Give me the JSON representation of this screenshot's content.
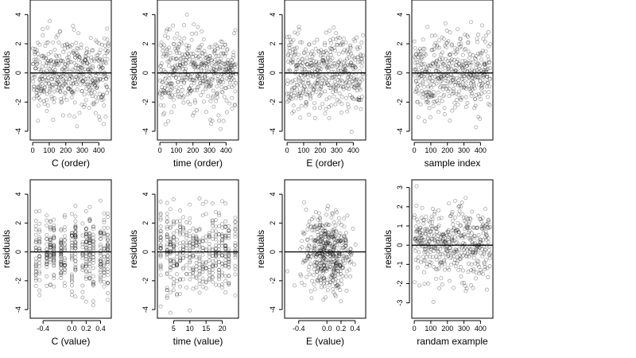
{
  "chart_data": [
    {
      "type": "scatter",
      "xlabel": "C (order)",
      "ylabel": "residuals",
      "xlim": [
        -15,
        475
      ],
      "ylim": [
        -4.6,
        5
      ],
      "xticks": [
        0,
        100,
        200,
        300,
        400
      ],
      "yticks": [
        -4,
        -2,
        0,
        2,
        4
      ],
      "hline": 0,
      "n": 460,
      "x_kind": "index",
      "y_sd": 1.3,
      "seed": 11
    },
    {
      "type": "scatter",
      "xlabel": "time (order)",
      "ylabel": "residuals",
      "xlim": [
        -15,
        475
      ],
      "ylim": [
        -4.6,
        5
      ],
      "xticks": [
        0,
        100,
        200,
        300,
        400
      ],
      "yticks": [
        -4,
        -2,
        0,
        2,
        4
      ],
      "hline": 0,
      "n": 460,
      "x_kind": "index",
      "y_sd": 1.3,
      "seed": 23
    },
    {
      "type": "scatter",
      "xlabel": "E (order)",
      "ylabel": "residuals",
      "xlim": [
        -15,
        475
      ],
      "ylim": [
        -4.6,
        5
      ],
      "xticks": [
        0,
        100,
        200,
        300,
        400
      ],
      "yticks": [
        -4,
        -2,
        0,
        2,
        4
      ],
      "hline": 0,
      "n": 460,
      "x_kind": "index",
      "y_sd": 1.3,
      "seed": 37
    },
    {
      "type": "scatter",
      "xlabel": "sample index",
      "ylabel": "residuals",
      "xlim": [
        -15,
        475
      ],
      "ylim": [
        -4.6,
        5
      ],
      "xticks": [
        0,
        100,
        200,
        300,
        400
      ],
      "yticks": [
        -4,
        -2,
        0,
        2,
        4
      ],
      "hline": 0,
      "n": 460,
      "x_kind": "index",
      "y_sd": 1.3,
      "seed": 41
    },
    {
      "type": "scatter",
      "xlabel": "C (value)",
      "ylabel": "residuals",
      "xlim": [
        -0.58,
        0.55
      ],
      "ylim": [
        -4.6,
        5
      ],
      "xticks": [
        -0.4,
        0.0,
        0.2,
        0.4
      ],
      "xticklabels": [
        "-0.4",
        "0.0",
        "0.2",
        "0.4"
      ],
      "yticks": [
        -4,
        -2,
        0,
        2,
        4
      ],
      "hline": 0,
      "n": 460,
      "x_kind": "discrete",
      "x_levels": [
        -0.5,
        -0.45,
        -0.35,
        -0.3,
        -0.25,
        -0.15,
        -0.1,
        0.0,
        0.05,
        0.15,
        0.2,
        0.25,
        0.3,
        0.4,
        0.45,
        0.5
      ],
      "y_sd": 1.3,
      "seed": 53
    },
    {
      "type": "scatter",
      "xlabel": "time (value)",
      "ylabel": "residuals",
      "xlim": [
        0,
        25
      ],
      "ylim": [
        -4.6,
        5
      ],
      "xticks": [
        5,
        10,
        15,
        20
      ],
      "yticks": [
        -4,
        -2,
        0,
        2,
        4
      ],
      "hline": 0,
      "n": 460,
      "x_kind": "discrete",
      "x_levels": [
        1,
        3,
        4,
        5,
        6,
        7,
        8,
        9,
        10,
        11,
        12,
        13,
        14,
        15,
        16,
        17,
        18,
        19,
        20,
        21,
        22,
        24
      ],
      "y_sd": 1.3,
      "seed": 67
    },
    {
      "type": "scatter",
      "xlabel": "E (value)",
      "ylabel": "residuals",
      "xlim": [
        -0.6,
        0.55
      ],
      "ylim": [
        -4.6,
        5
      ],
      "xticks": [
        -0.4,
        0.0,
        0.2,
        0.4
      ],
      "xticklabels": [
        "-0.4",
        "0.0",
        "0.2",
        "0.4"
      ],
      "yticks": [
        -4,
        -2,
        0,
        2,
        4
      ],
      "hline": 0,
      "n": 460,
      "x_kind": "normal",
      "x_center": 0.0,
      "x_sd": 0.18,
      "y_sd": 1.3,
      "seed": 79
    },
    {
      "type": "scatter",
      "xlabel": "randam example",
      "ylabel": "residuals",
      "xlim": [
        -15,
        475
      ],
      "ylim": [
        -3.8,
        3.4
      ],
      "xticks": [
        0,
        100,
        200,
        300,
        400
      ],
      "yticks": [
        -3,
        -2,
        -1,
        0,
        1,
        2,
        3
      ],
      "hline": 0,
      "n": 460,
      "x_kind": "index",
      "y_sd": 1.0,
      "seed": 97
    }
  ]
}
